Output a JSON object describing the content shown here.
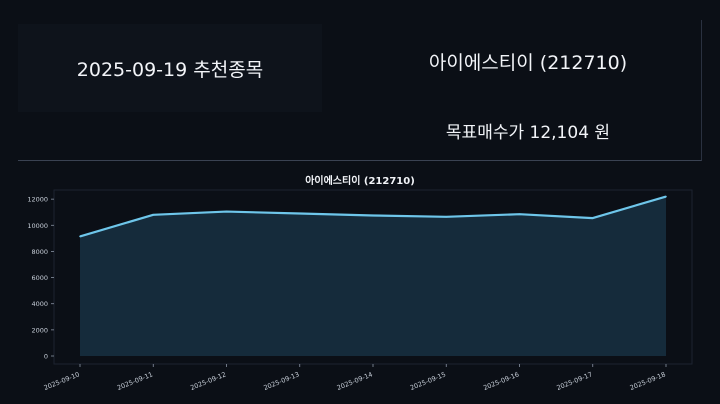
{
  "header": {
    "date_title": "2025-09-19 추천종목",
    "stock_title": "아이에스티이 (212710)",
    "target_price": "목표매수가 12,104 원"
  },
  "colors": {
    "background": "#0b0f16",
    "line": "#6ec6ea",
    "fill": "#173042"
  },
  "chart_data": {
    "type": "area",
    "title": "아이에스티이 (212710)",
    "x": [
      "2025-09-10",
      "2025-09-11",
      "2025-09-12",
      "2025-09-13",
      "2025-09-14",
      "2025-09-15",
      "2025-09-16",
      "2025-09-17",
      "2025-09-18"
    ],
    "values": [
      9150,
      10800,
      11050,
      10900,
      10750,
      10650,
      10850,
      10550,
      12200
    ],
    "yticks": [
      0,
      2000,
      4000,
      6000,
      8000,
      10000,
      12000
    ],
    "ylim": [
      0,
      12700
    ],
    "xlabel": "",
    "ylabel": "",
    "grid": false
  }
}
